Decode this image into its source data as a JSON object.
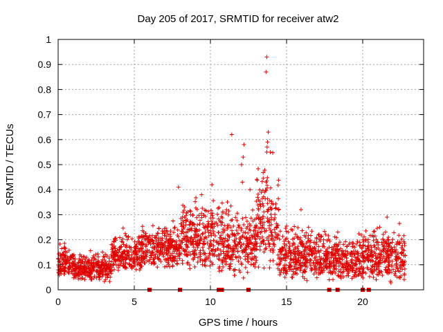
{
  "chart_data": {
    "type": "scatter",
    "title": "Day 205 of 2017, SRMTID for receiver atw2",
    "xlabel": "GPS time / hours",
    "ylabel": "SRMTID / TECUs",
    "xlim": [
      0,
      24
    ],
    "ylim": [
      0,
      1
    ],
    "xticks": [
      0,
      5,
      10,
      15,
      20
    ],
    "yticks": [
      0,
      0.1,
      0.2,
      0.3,
      0.4,
      0.5,
      0.6,
      0.7,
      0.8,
      0.9,
      1
    ],
    "xtick_labels": [
      "0",
      "5",
      "10",
      "15",
      "20"
    ],
    "ytick_labels": [
      "0",
      "0.1",
      "0.2",
      "0.3",
      "0.4",
      "0.5",
      "0.6",
      "0.7",
      "0.8",
      "0.9",
      "1"
    ],
    "grid": true,
    "series": [
      {
        "name": "SRMTID",
        "marker": "plus",
        "color": "#e00000",
        "band_summary": [
          {
            "x": [
              0.0,
              1.0
            ],
            "y_range": [
              0.05,
              0.2
            ]
          },
          {
            "x": [
              1.0,
              3.5
            ],
            "y_range": [
              0.03,
              0.17
            ]
          },
          {
            "x": [
              3.5,
              5.5
            ],
            "y_range": [
              0.06,
              0.26
            ]
          },
          {
            "x": [
              5.5,
              8.0
            ],
            "y_range": [
              0.08,
              0.3
            ]
          },
          {
            "x": [
              8.0,
              10.5
            ],
            "y_range": [
              0.07,
              0.42
            ]
          },
          {
            "x": [
              10.5,
              13.0
            ],
            "y_range": [
              0.04,
              0.4
            ]
          },
          {
            "x": [
              13.0,
              14.5
            ],
            "y_range": [
              0.05,
              0.63
            ]
          },
          {
            "x": [
              14.5,
              17.5
            ],
            "y_range": [
              0.03,
              0.3
            ]
          },
          {
            "x": [
              17.5,
              20.0
            ],
            "y_range": [
              0.03,
              0.25
            ]
          },
          {
            "x": [
              20.0,
              22.8
            ],
            "y_range": [
              0.02,
              0.3
            ]
          }
        ],
        "outliers": [
          {
            "x": 7.9,
            "y": 0.41
          },
          {
            "x": 10.1,
            "y": 0.42
          },
          {
            "x": 11.4,
            "y": 0.62
          },
          {
            "x": 12.2,
            "y": 0.58
          },
          {
            "x": 12.15,
            "y": 0.53
          },
          {
            "x": 12.05,
            "y": 0.5
          },
          {
            "x": 12.1,
            "y": 0.43
          },
          {
            "x": 13.7,
            "y": 0.93
          },
          {
            "x": 13.65,
            "y": 0.87
          },
          {
            "x": 13.8,
            "y": 0.63
          },
          {
            "x": 13.75,
            "y": 0.59
          },
          {
            "x": 13.72,
            "y": 0.57
          },
          {
            "x": 13.7,
            "y": 0.55
          },
          {
            "x": 13.65,
            "y": 0.43
          },
          {
            "x": 12.6,
            "y": 0.4
          },
          {
            "x": 15.95,
            "y": 0.32
          },
          {
            "x": 21.6,
            "y": 0.29
          }
        ]
      },
      {
        "name": "gaps",
        "marker": "square",
        "color": "#e00000",
        "x": [
          6.0,
          8.0,
          10.55,
          10.65,
          10.75,
          12.5,
          17.8,
          18.35,
          20.0,
          20.4
        ],
        "y": [
          0,
          0,
          0,
          0,
          0,
          0,
          0,
          0,
          0,
          0
        ]
      }
    ]
  }
}
